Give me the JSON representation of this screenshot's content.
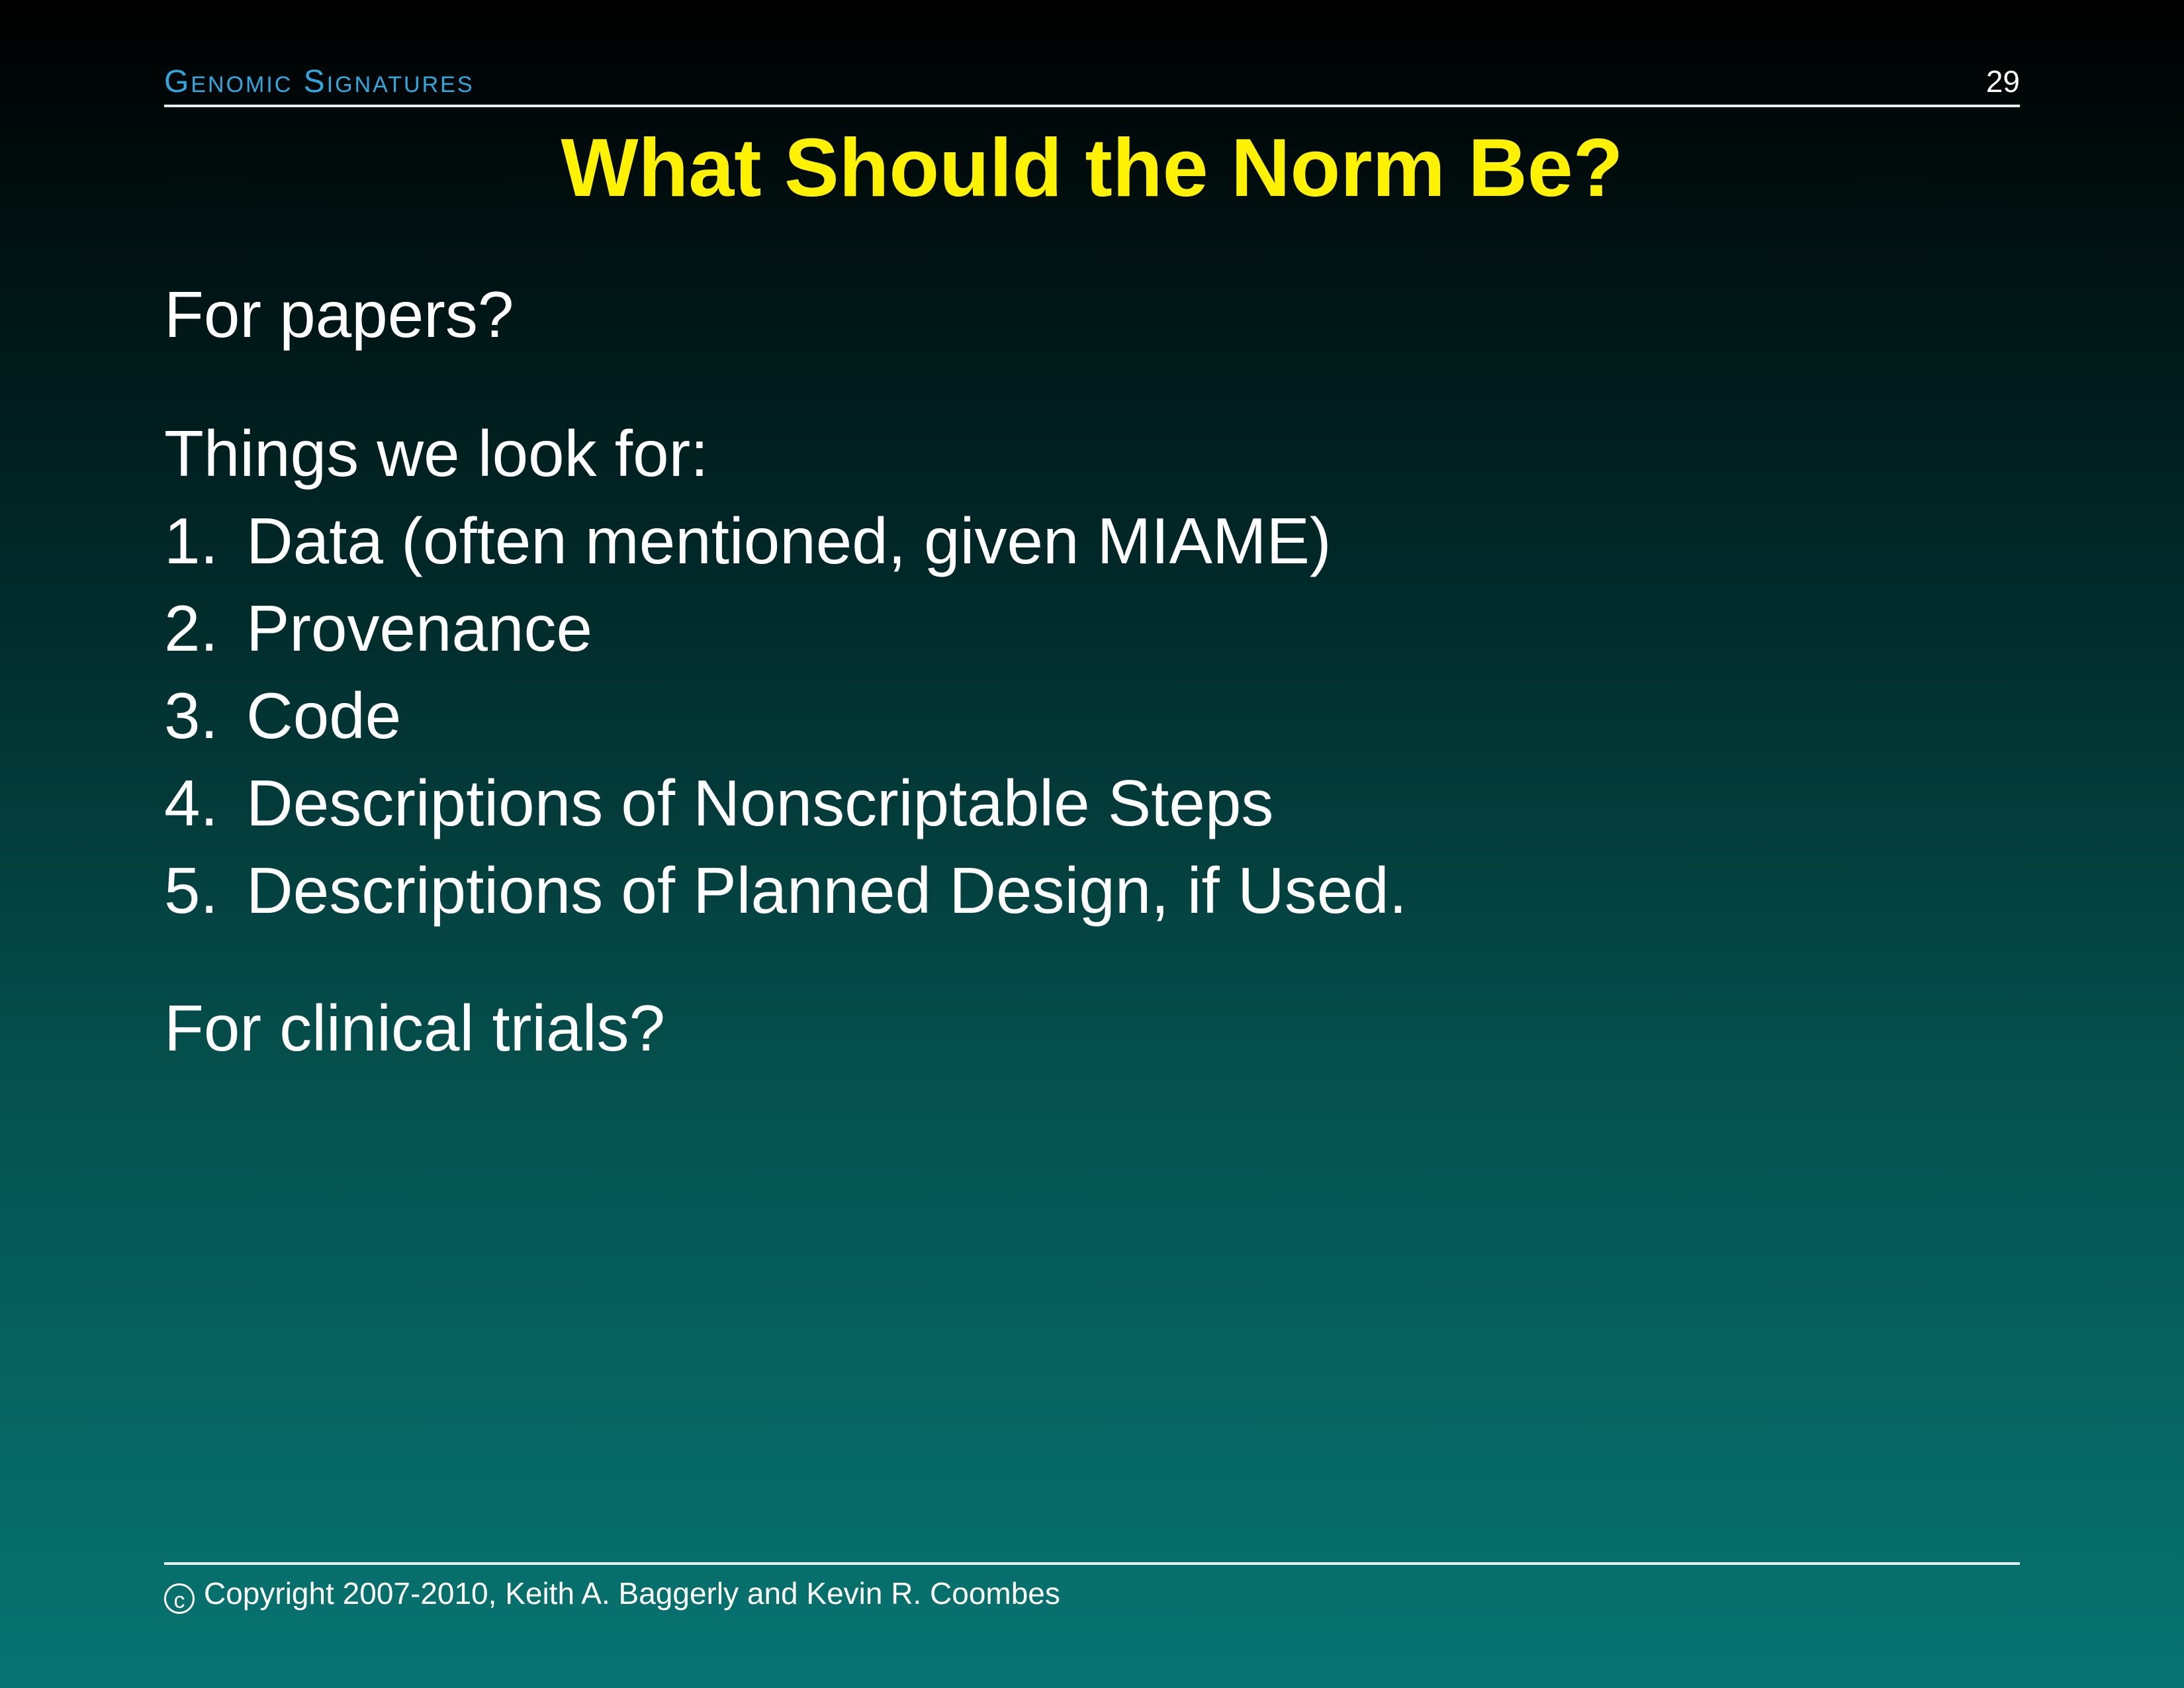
{
  "header": {
    "section_title": "Genomic Signatures",
    "page_number": "29"
  },
  "slide": {
    "title": "What Should the Norm Be?",
    "papers_question": "For papers?",
    "things_intro": "Things we look for:",
    "items": [
      {
        "number": "1.",
        "text": "Data (often mentioned, given MIAME)"
      },
      {
        "number": "2.",
        "text": "Provenance"
      },
      {
        "number": "3.",
        "text": "Code"
      },
      {
        "number": "4.",
        "text": "Descriptions of Nonscriptable Steps"
      },
      {
        "number": "5.",
        "text": "Descriptions of Planned Design, if Used."
      }
    ],
    "trials_question": "For clinical trials?"
  },
  "footer": {
    "copyright_symbol": "c",
    "text": "Copyright 2007-2010, Keith A. Baggerly and Kevin R. Coombes"
  }
}
